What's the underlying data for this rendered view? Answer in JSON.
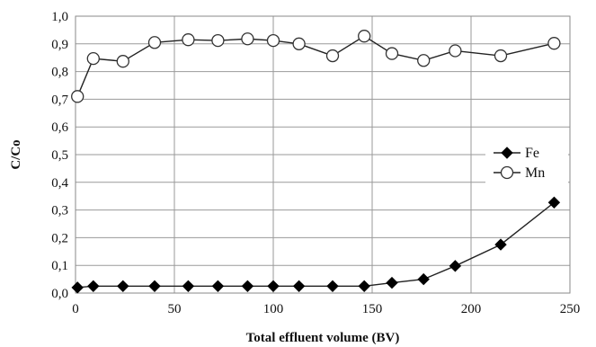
{
  "chart_data": {
    "type": "line",
    "xlabel": "Total effluent volume (BV)",
    "ylabel": "C/Co",
    "xlim": [
      0,
      250
    ],
    "ylim": [
      0,
      1.0
    ],
    "x_ticks": [
      "0",
      "50",
      "100",
      "150",
      "200",
      "250"
    ],
    "y_ticks": [
      "0,0",
      "0,1",
      "0,2",
      "0,3",
      "0,4",
      "0,5",
      "0,6",
      "0,7",
      "0,8",
      "0,9",
      "1,0"
    ],
    "grid": true,
    "legend_position": "right",
    "series": [
      {
        "name": "Fe",
        "marker": "filled-diamond",
        "x": [
          1,
          9,
          24,
          40,
          57,
          72,
          87,
          100,
          113,
          130,
          146,
          160,
          176,
          192,
          215,
          242
        ],
        "y": [
          0.02,
          0.025,
          0.025,
          0.025,
          0.025,
          0.025,
          0.025,
          0.025,
          0.025,
          0.025,
          0.025,
          0.037,
          0.05,
          0.098,
          0.175,
          0.327
        ]
      },
      {
        "name": "Mn",
        "marker": "open-circle",
        "x": [
          1,
          9,
          24,
          40,
          57,
          72,
          87,
          100,
          113,
          130,
          146,
          160,
          176,
          192,
          215,
          242
        ],
        "y": [
          0.71,
          0.847,
          0.837,
          0.905,
          0.915,
          0.912,
          0.918,
          0.912,
          0.9,
          0.857,
          0.928,
          0.865,
          0.84,
          0.875,
          0.857,
          0.902
        ]
      }
    ]
  }
}
